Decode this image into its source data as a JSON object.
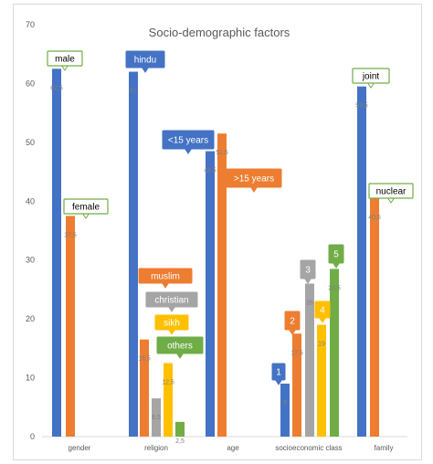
{
  "chart_data": {
    "type": "bar",
    "title": "Socio-demographic factors",
    "xlabel": "",
    "ylabel": "",
    "ylim": [
      0,
      70
    ],
    "yticks": [
      0,
      10,
      20,
      30,
      40,
      50,
      60,
      70
    ],
    "grid": false,
    "legend": "none",
    "categories": [
      "gender",
      "religion",
      "age",
      "socioeconomic class",
      "family"
    ],
    "groups": [
      {
        "category": "gender",
        "bars": [
          {
            "label": "male",
            "value": 62.5,
            "value_label": "62,5",
            "color": "#4472C4",
            "callout_style": "outline"
          },
          {
            "label": "female",
            "value": 37.5,
            "value_label": "37,5",
            "color": "#ED7D31",
            "callout_style": "outline"
          }
        ]
      },
      {
        "category": "religion",
        "bars": [
          {
            "label": "hindu",
            "value": 62,
            "value_label": "62",
            "color": "#4472C4",
            "callout_style": "filled"
          },
          {
            "label": "muslim",
            "value": 16.5,
            "value_label": "16,5",
            "color": "#ED7D31",
            "callout_style": "filled"
          },
          {
            "label": "christian",
            "value": 6.5,
            "value_label": "6,5",
            "color": "#A5A5A5",
            "callout_style": "filled"
          },
          {
            "label": "sikh",
            "value": 12.5,
            "value_label": "12,5",
            "color": "#FFC000",
            "callout_style": "filled"
          },
          {
            "label": "others",
            "value": 2.5,
            "value_label": "2,5",
            "color": "#70AD47",
            "callout_style": "filled"
          }
        ]
      },
      {
        "category": "age",
        "bars": [
          {
            "label": "<15 years",
            "value": 48.5,
            "value_label": "48,5",
            "color": "#4472C4",
            "callout_style": "filled"
          },
          {
            "label": ">15 years",
            "value": 51.5,
            "value_label": "51,5",
            "color": "#ED7D31",
            "callout_style": "filled"
          }
        ]
      },
      {
        "category": "socioeconomic class",
        "bars": [
          {
            "label": "1",
            "value": 9,
            "value_label": "9",
            "color": "#4472C4",
            "callout_style": "filled"
          },
          {
            "label": "2",
            "value": 17.5,
            "value_label": "17,5",
            "color": "#ED7D31",
            "callout_style": "filled"
          },
          {
            "label": "3",
            "value": 26,
            "value_label": "26",
            "color": "#A5A5A5",
            "callout_style": "filled"
          },
          {
            "label": "4",
            "value": 19,
            "value_label": "19",
            "color": "#FFC000",
            "callout_style": "filled"
          },
          {
            "label": "5",
            "value": 28.5,
            "value_label": "28,5",
            "color": "#70AD47",
            "callout_style": "filled"
          }
        ]
      },
      {
        "category": "family",
        "bars": [
          {
            "label": "joint",
            "value": 59.5,
            "value_label": "59,5",
            "color": "#4472C4",
            "callout_style": "outline"
          },
          {
            "label": "nuclear",
            "value": 40.5,
            "value_label": "40,5",
            "color": "#ED7D31",
            "callout_style": "outline"
          }
        ]
      }
    ],
    "callout_outline_color": "#70AD47"
  }
}
